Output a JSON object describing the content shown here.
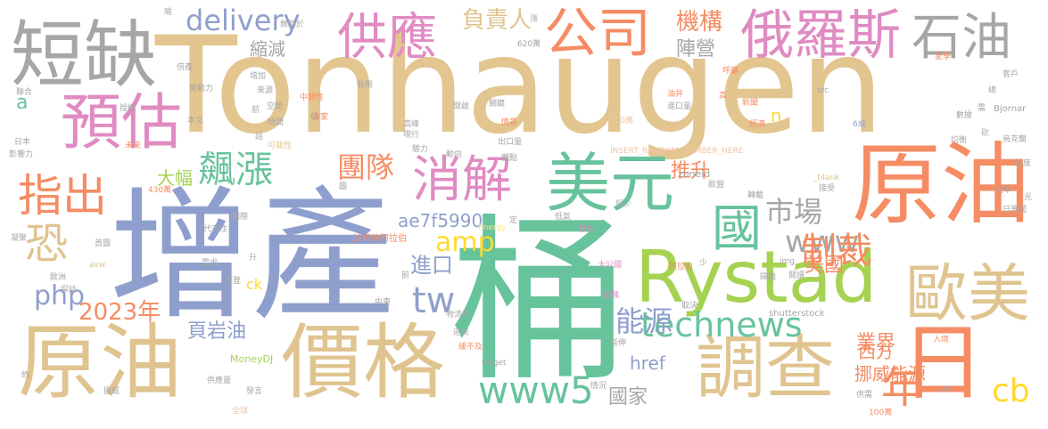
{
  "words": [
    {
      "text": "Tonhaugen",
      "color": "#e3c58f"
    },
    {
      "text": "增產",
      "color": "#8f9fcd"
    },
    {
      "text": "桶",
      "color": "#67c39c"
    },
    {
      "text": "原油",
      "color": "#e0c490"
    },
    {
      "text": "原油",
      "color": "#f58c63"
    },
    {
      "text": "價格",
      "color": "#e0c490"
    },
    {
      "text": "Rystad",
      "color": "#a6d252"
    },
    {
      "text": "美元",
      "color": "#67c39c"
    },
    {
      "text": "調查",
      "color": "#e0c490"
    },
    {
      "text": "日",
      "color": "#f58c63"
    },
    {
      "text": "短缺",
      "color": "#a6a6a6"
    },
    {
      "text": "公司",
      "color": "#f58c63"
    },
    {
      "text": "俄羅斯",
      "color": "#e08bc2"
    },
    {
      "text": "供應",
      "color": "#e08bc2"
    },
    {
      "text": "預估",
      "color": "#e08bc2"
    },
    {
      "text": "石油",
      "color": "#a6a6a6"
    },
    {
      "text": "歐美",
      "color": "#e0c490"
    },
    {
      "text": "國",
      "color": "#67c39c"
    },
    {
      "text": "消解",
      "color": "#e08bc2"
    },
    {
      "text": "指出",
      "color": "#f58c63"
    },
    {
      "text": "恐",
      "color": "#e0c490"
    },
    {
      "text": "飆漲",
      "color": "#67c39c"
    },
    {
      "text": "technews",
      "color": "#67c39c"
    },
    {
      "text": "www5",
      "color": "#67c39c"
    },
    {
      "text": "www",
      "color": "#a6a6a6"
    },
    {
      "text": "市場",
      "color": "#a6a6a6"
    },
    {
      "text": "制裁",
      "color": "#f58c63"
    },
    {
      "text": "tw",
      "color": "#8f9fcd"
    },
    {
      "text": "amp",
      "color": "#ffd92f"
    },
    {
      "text": "php",
      "color": "#8f9fcd"
    },
    {
      "text": "delivery",
      "color": "#8f9fcd"
    },
    {
      "text": "負責人",
      "color": "#e0c490"
    },
    {
      "text": "機構",
      "color": "#f58c63"
    },
    {
      "text": "團隊",
      "color": "#f58c63"
    },
    {
      "text": "2023年",
      "color": "#f58c63"
    },
    {
      "text": "ae7f5990",
      "color": "#8f9fcd"
    },
    {
      "text": "能源",
      "color": "#8f9fcd"
    },
    {
      "text": "年",
      "color": "#f58c63"
    },
    {
      "text": "cb",
      "color": "#ffd92f"
    },
    {
      "text": "業界",
      "color": "#f58c63"
    },
    {
      "text": "挪威能源",
      "color": "#f58c63"
    },
    {
      "text": "美國",
      "color": "#f58c63"
    },
    {
      "text": "進口",
      "color": "#8f9fcd"
    },
    {
      "text": "陣營",
      "color": "#a6a6a6"
    },
    {
      "text": "頁岩油",
      "color": "#8f9fcd"
    },
    {
      "text": "國家",
      "color": "#a6a6a6"
    },
    {
      "text": "西方",
      "color": "#f58c63"
    },
    {
      "text": "縮減",
      "color": "#a6a6a6"
    },
    {
      "text": "大幅",
      "color": "#a6d252"
    },
    {
      "text": "推升",
      "color": "#f58c63"
    },
    {
      "text": "href",
      "color": "#8f9fcd"
    },
    {
      "text": "ck",
      "color": "#ffd92f"
    },
    {
      "text": "a",
      "color": "#67c39c"
    },
    {
      "text": "n",
      "color": "#ffd92f"
    },
    {
      "text": "INSERT_RANDOM_NUMBER_HERE",
      "color": "#f3c2a6"
    },
    {
      "text": "zoneid",
      "color": "#a6a6a6"
    },
    {
      "text": "沙烏地阿拉伯",
      "color": "#f58c63"
    },
    {
      "text": "MoneyDJ",
      "color": "#a6d252"
    },
    {
      "text": "Bjornar",
      "color": "#a6a6a6"
    },
    {
      "text": "shutterstock",
      "color": "#a6a6a6"
    },
    {
      "text": "UAE",
      "color": "#a6a6a6"
    },
    {
      "text": "Energy",
      "color": "#ffe57f"
    },
    {
      "text": "target",
      "color": "#a6a6a6"
    },
    {
      "text": "avw",
      "color": "#e0c490"
    },
    {
      "text": "img",
      "color": "#a6a6a6"
    },
    {
      "text": "src",
      "color": "#a6a6a6"
    },
    {
      "text": "_blank",
      "color": "#e0c490"
    },
    {
      "text": "620萬",
      "color": "#a6a6a6"
    },
    {
      "text": "300萬",
      "color": "#f3c2a6"
    },
    {
      "text": "430萬",
      "color": "#f58c63"
    },
    {
      "text": "100萬",
      "color": "#f58c63"
    },
    {
      "text": "6成",
      "color": "#8f9fcd"
    },
    {
      "text": "專家",
      "color": "#f58c63"
    },
    {
      "text": "中間性",
      "color": "#f58c63"
    },
    {
      "text": "代表性",
      "color": "#a6a6a6"
    },
    {
      "text": "勞動力",
      "color": "#a6a6a6"
    },
    {
      "text": "可能性",
      "color": "#e0c490"
    },
    {
      "text": "經濟",
      "color": "#f58c63"
    },
    {
      "text": "新聞",
      "color": "#f58c63"
    },
    {
      "text": "烏克蘭",
      "color": "#a6a6a6"
    },
    {
      "text": "歐盟",
      "color": "#a6a6a6"
    },
    {
      "text": "阿拉伯",
      "color": "#f58c63"
    },
    {
      "text": "大公國",
      "color": "#e08bc2"
    },
    {
      "text": "物流網",
      "color": "#a6a6a6"
    },
    {
      "text": "出口量",
      "color": "#a6a6a6"
    },
    {
      "text": "進口量",
      "color": "#a6a6a6"
    },
    {
      "text": "供應量",
      "color": "#a6a6a6"
    },
    {
      "text": "日等國",
      "color": "#a6a6a6"
    },
    {
      "text": "無助於",
      "color": "#a6a6a6"
    },
    {
      "text": "緩不及",
      "color": "#f58c63"
    },
    {
      "text": "情況",
      "color": "#a6a6a6"
    },
    {
      "text": "全球",
      "color": "#f3c2a6"
    },
    {
      "text": "歐洲",
      "color": "#a6a6a6"
    },
    {
      "text": "中東",
      "color": "#a6a6a6"
    },
    {
      "text": "日本",
      "color": "#a6a6a6"
    },
    {
      "text": "程度",
      "color": "#a6a6a6"
    },
    {
      "text": "均衡",
      "color": "#a6a6a6"
    },
    {
      "text": "客戶",
      "color": "#a6a6a6"
    },
    {
      "text": "延伸",
      "color": "#a6a6a6"
    },
    {
      "text": "金融",
      "color": "#e08bc2"
    },
    {
      "text": "包含",
      "color": "#e08bc2"
    },
    {
      "text": "低氣",
      "color": "#a6a6a6"
    },
    {
      "text": "首圖",
      "color": "#a6a6a6"
    },
    {
      "text": "國際",
      "color": "#a6a6a6"
    },
    {
      "text": "凝聚",
      "color": "#a6a6a6"
    },
    {
      "text": "來源",
      "color": "#a6a6a6"
    },
    {
      "text": "增加",
      "color": "#a6a6a6"
    },
    {
      "text": "時間",
      "color": "#a6a6a6"
    },
    {
      "text": "油井",
      "color": "#f58c63"
    },
    {
      "text": "高",
      "color": "#f58c63"
    },
    {
      "text": "夏季",
      "color": "#f58c63"
    },
    {
      "text": "數據",
      "color": "#a6a6a6"
    },
    {
      "text": "轉載",
      "color": "#a6a6a6"
    },
    {
      "text": "入境",
      "color": "#f58c63"
    },
    {
      "text": "現行",
      "color": "#a6a6a6"
    },
    {
      "text": "開啟",
      "color": "#a6a6a6"
    },
    {
      "text": "關鍵",
      "color": "#a6a6a6"
    },
    {
      "text": "需求",
      "color": "#a6a6a6"
    },
    {
      "text": "拜登",
      "color": "#a6a6a6"
    },
    {
      "text": "發言",
      "color": "#a6a6a6"
    },
    {
      "text": "挪威",
      "color": "#a6a6a6"
    },
    {
      "text": "影響力",
      "color": "#a6a6a6"
    },
    {
      "text": "聯合",
      "color": "#a6a6a6"
    },
    {
      "text": "倍產",
      "color": "#a6a6a6"
    },
    {
      "text": "授權",
      "color": "#a6a6a6"
    },
    {
      "text": "本文",
      "color": "#a6a6a6"
    },
    {
      "text": "前",
      "color": "#a6a6a6"
    },
    {
      "text": "取決",
      "color": "#a6a6a6"
    },
    {
      "text": "閱讀",
      "color": "#a6a6a6"
    },
    {
      "text": "短少",
      "color": "#a6a6a6"
    },
    {
      "text": "呼籲",
      "color": "#f58c63"
    },
    {
      "text": "未來",
      "color": "#f58c63"
    },
    {
      "text": "情景",
      "color": "#f58c63"
    },
    {
      "text": "高峰",
      "color": "#a6a6a6"
    },
    {
      "text": "有限",
      "color": "#a6a6a6"
    },
    {
      "text": "定",
      "color": "#a6a6a6"
    },
    {
      "text": "升",
      "color": "#a6a6a6"
    },
    {
      "text": "低",
      "color": "#a6a6a6"
    },
    {
      "text": "約",
      "color": "#a6a6a6"
    },
    {
      "text": "需",
      "color": "#a6a6a6"
    },
    {
      "text": "光",
      "color": "#a6a6a6"
    },
    {
      "text": "總",
      "color": "#a6a6a6"
    },
    {
      "text": "砍",
      "color": "#a6a6a6"
    },
    {
      "text": "少",
      "color": "#a6a6a6"
    },
    {
      "text": "前",
      "color": "#a6a6a6"
    },
    {
      "text": "喻",
      "color": "#a6a6a6"
    },
    {
      "text": "圖",
      "color": "#a6a6a6"
    },
    {
      "text": "接受",
      "color": "#a6a6a6"
    },
    {
      "text": "供需",
      "color": "#a6a6a6"
    },
    {
      "text": "隔離",
      "color": "#a6a6a6"
    },
    {
      "text": "動向",
      "color": "#a6a6a6"
    },
    {
      "text": "空間",
      "color": "#a6a6a6"
    },
    {
      "text": "話",
      "color": "#a6a6a6"
    },
    {
      "text": "稅率",
      "color": "#a6a6a6"
    },
    {
      "text": "探訪",
      "color": "#a6a6a6"
    },
    {
      "text": "迎來",
      "color": "#a6a6a6"
    },
    {
      "text": "觀點",
      "color": "#a6a6a6"
    },
    {
      "text": "驗力",
      "color": "#a6a6a6"
    },
    {
      "text": "漲",
      "color": "#a6a6a6"
    }
  ]
}
